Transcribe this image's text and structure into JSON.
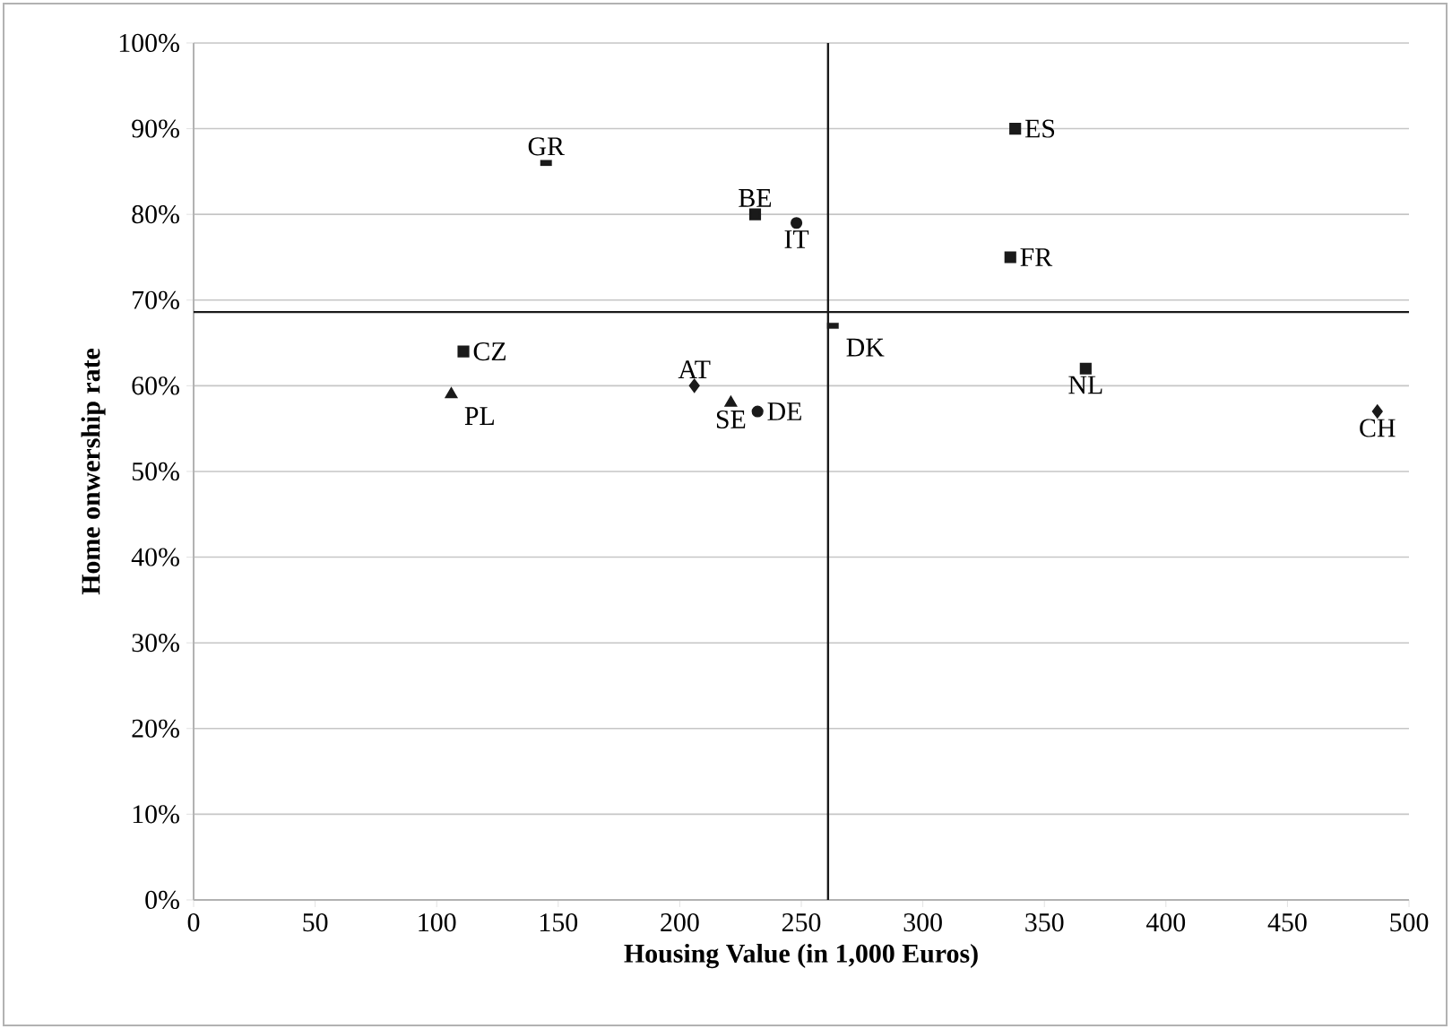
{
  "chart_data": {
    "type": "scatter",
    "xlabel": "Housing Value (in 1,000 Euros)",
    "ylabel": "Home onwership rate",
    "xlim": [
      0,
      500
    ],
    "xticks": [
      0,
      50,
      100,
      150,
      200,
      250,
      300,
      350,
      400,
      450,
      500
    ],
    "ylim": [
      0,
      100
    ],
    "yticks": [
      {
        "value": 0,
        "label": "0%"
      },
      {
        "value": 10,
        "label": "10%"
      },
      {
        "value": 20,
        "label": "20%"
      },
      {
        "value": 30,
        "label": "30%"
      },
      {
        "value": 40,
        "label": "40%"
      },
      {
        "value": 50,
        "label": "50%"
      },
      {
        "value": 60,
        "label": "60%"
      },
      {
        "value": 70,
        "label": "70%"
      },
      {
        "value": 80,
        "label": "80%"
      },
      {
        "value": 90,
        "label": "90%"
      },
      {
        "value": 100,
        "label": "100%"
      }
    ],
    "grid": "y",
    "series": [
      {
        "marker": "square",
        "color": "#1a1a1a",
        "x": [
          231,
          111,
          338,
          336,
          367
        ],
        "values": [
          80,
          64,
          90,
          75,
          62
        ]
      },
      {
        "marker": "circle",
        "color": "#1a1a1a",
        "x": [
          248,
          232
        ],
        "values": [
          79,
          57
        ]
      },
      {
        "marker": "triangle",
        "color": "#1a1a1a",
        "x": [
          106,
          221
        ],
        "values": [
          59,
          58
        ]
      },
      {
        "marker": "diamond",
        "color": "#1a1a1a",
        "x": [
          206,
          487
        ],
        "values": [
          60,
          57
        ]
      },
      {
        "color": "#1a1a1a",
        "x": [
          145,
          263
        ],
        "values": [
          86,
          67
        ]
      }
    ],
    "ref_lines": [
      {
        "axis": "x",
        "value": 261,
        "color": "#1a1a1a"
      },
      {
        "axis": "y",
        "value": 68.6,
        "color": "#1a1a1a"
      }
    ],
    "annotations": [
      {
        "text": "GR",
        "x": 145,
        "y": 86
      },
      {
        "text": "BE",
        "x": 231,
        "y": 80
      },
      {
        "text": "IT",
        "x": 248,
        "y": 79
      },
      {
        "text": "ES",
        "x": 338,
        "y": 90
      },
      {
        "text": "FR",
        "x": 336,
        "y": 75
      },
      {
        "text": "CZ",
        "x": 111,
        "y": 64
      },
      {
        "text": "DK",
        "x": 263,
        "y": 67
      },
      {
        "text": "PL",
        "x": 106,
        "y": 59
      },
      {
        "text": "AT",
        "x": 206,
        "y": 60
      },
      {
        "text": "SE",
        "x": 221,
        "y": 58
      },
      {
        "text": "DE",
        "x": 232,
        "y": 57
      },
      {
        "text": "NL",
        "x": 367,
        "y": 62
      },
      {
        "text": "CH",
        "x": 487,
        "y": 57
      }
    ]
  }
}
